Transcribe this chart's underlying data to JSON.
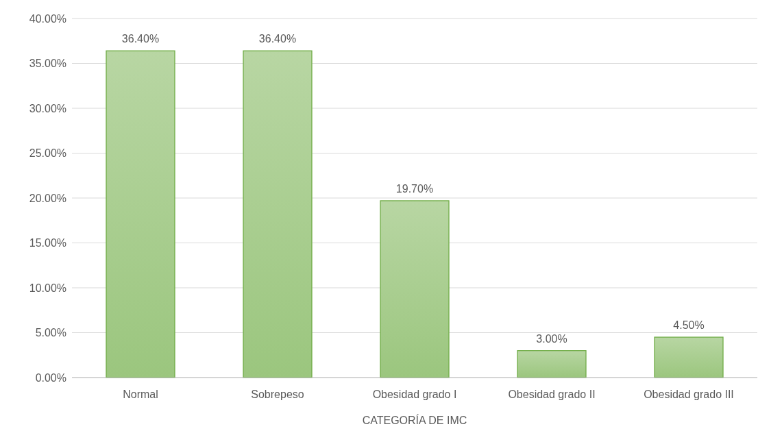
{
  "chart_data": {
    "type": "bar",
    "xlabel": "CATEGORÍA DE IMC",
    "categories": [
      "Normal",
      "Sobrepeso",
      "Obesidad grado I",
      "Obesidad grado II",
      "Obesidad grado III"
    ],
    "values": [
      36.4,
      36.4,
      19.7,
      3.0,
      4.5
    ],
    "value_labels": [
      "36.40%",
      "36.40%",
      "19.70%",
      "3.00%",
      "4.50%"
    ],
    "color": "#70ad47",
    "ylim": [
      0,
      40
    ],
    "yticks": [
      {
        "value": 0,
        "label": "0.00%"
      },
      {
        "value": 5,
        "label": "5.00%"
      },
      {
        "value": 10,
        "label": "10.00%"
      },
      {
        "value": 15,
        "label": "15.00%"
      },
      {
        "value": 20,
        "label": "20.00%"
      },
      {
        "value": 25,
        "label": "25.00%"
      },
      {
        "value": 30,
        "label": "30.00%"
      },
      {
        "value": 35,
        "label": "35.00%"
      },
      {
        "value": 40,
        "label": "40.00%"
      }
    ],
    "grid": "y"
  }
}
